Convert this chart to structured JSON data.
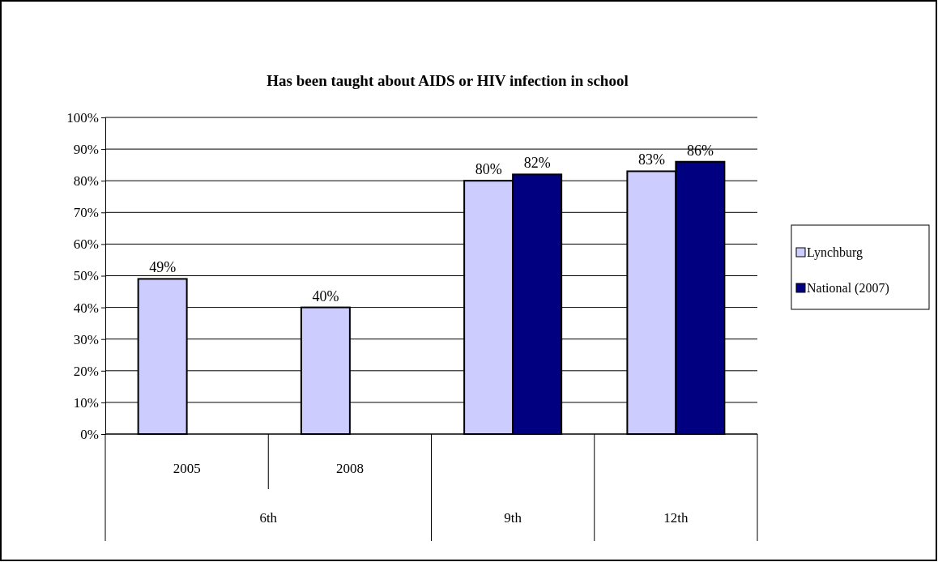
{
  "chart_data": {
    "type": "bar",
    "title": "Has been taught about AIDS or HIV infection in school",
    "categories": [
      "2005",
      "2008",
      null,
      null
    ],
    "annotations": [
      "6th",
      "9th",
      "12th"
    ],
    "series": [
      {
        "name": "Lynchburg",
        "color": "#ccccff",
        "values": [
          49,
          40,
          80,
          83
        ],
        "value_labels": [
          "49%",
          "40%",
          "80%",
          "83%"
        ]
      },
      {
        "name": "National (2007)",
        "color": "#000080",
        "values": [
          null,
          null,
          82,
          86
        ],
        "value_labels": [
          null,
          null,
          "82%",
          "86%"
        ]
      }
    ],
    "ylim": [
      0,
      100
    ],
    "yticks": [
      {
        "value": 0,
        "label": "0%"
      },
      {
        "value": 10,
        "label": "10%"
      },
      {
        "value": 20,
        "label": "20%"
      },
      {
        "value": 30,
        "label": "30%"
      },
      {
        "value": 40,
        "label": "40%"
      },
      {
        "value": 50,
        "label": "50%"
      },
      {
        "value": 60,
        "label": "60%"
      },
      {
        "value": 70,
        "label": "70%"
      },
      {
        "value": 80,
        "label": "80%"
      },
      {
        "value": 90,
        "label": "90%"
      },
      {
        "value": 100,
        "label": "100%"
      }
    ],
    "grid": "y",
    "legend": "right"
  }
}
